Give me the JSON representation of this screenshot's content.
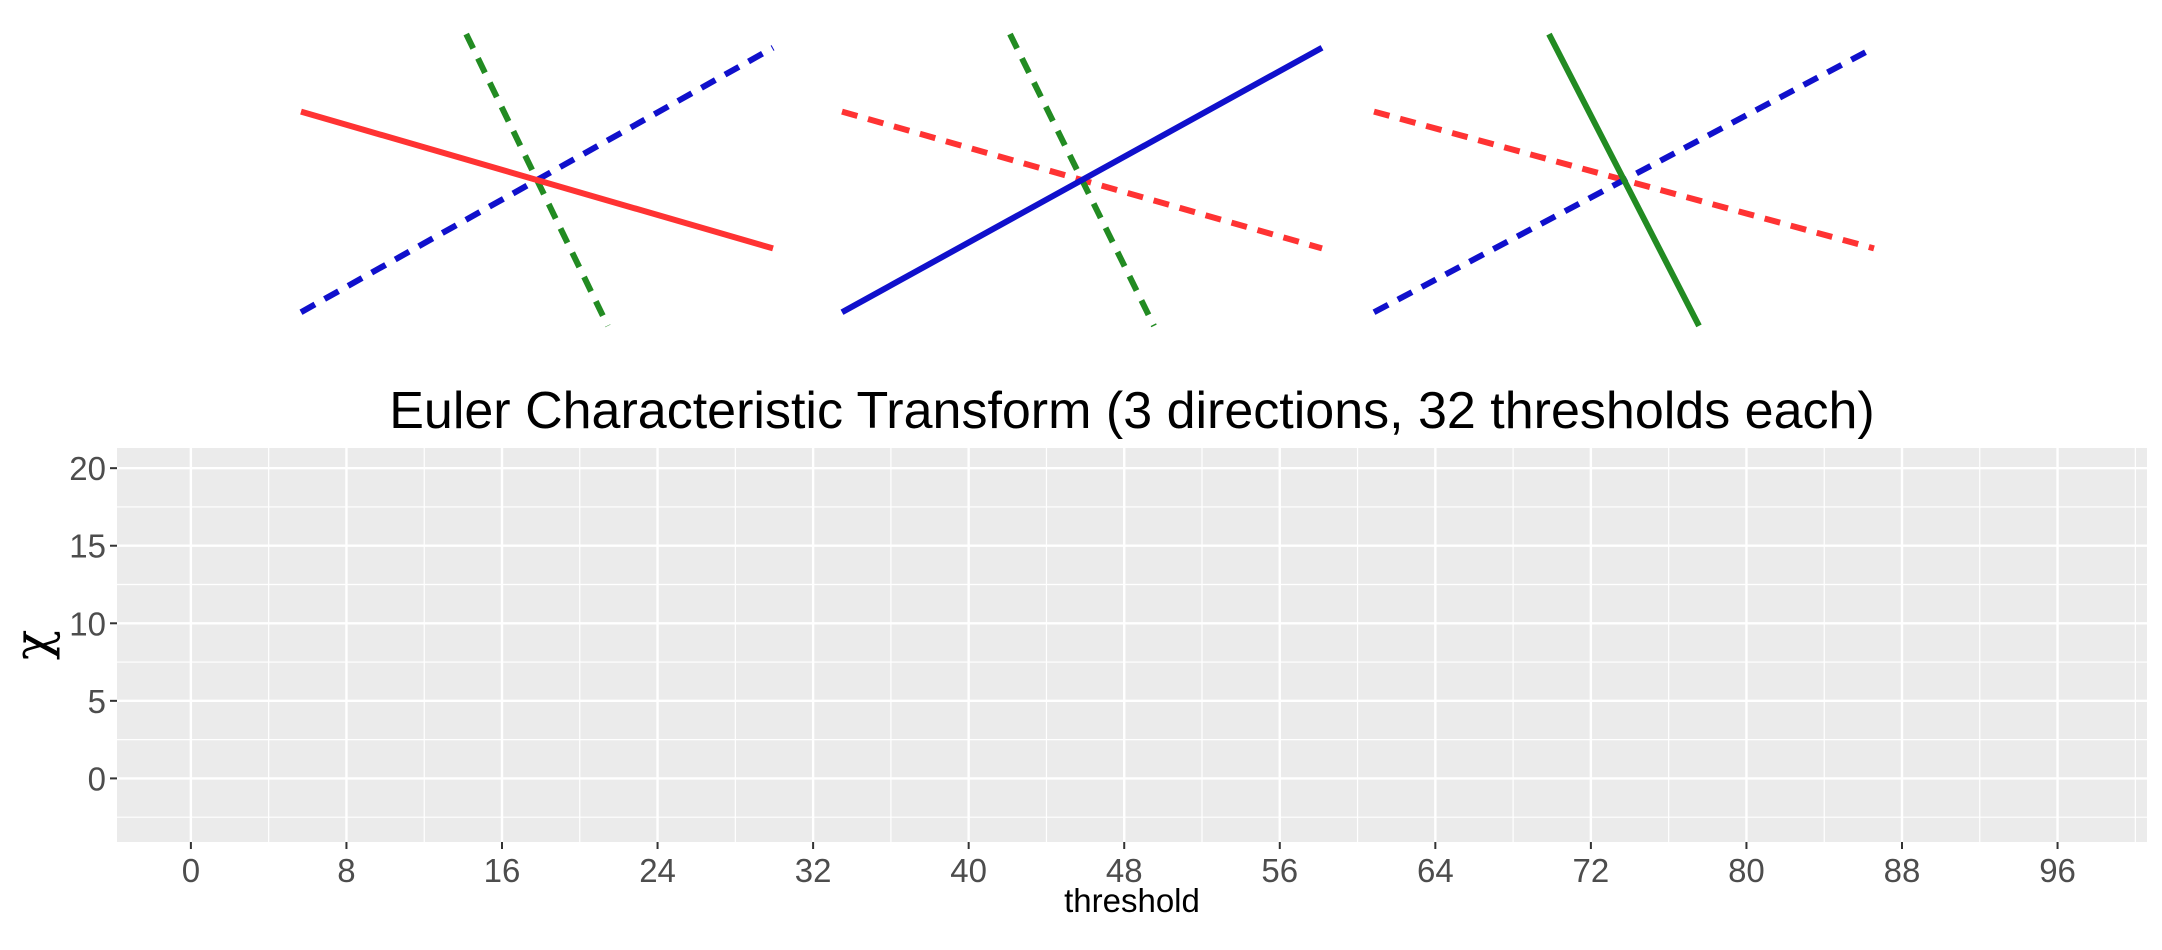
{
  "chart_data": {
    "type": "line",
    "title": "Euler Characteristic Transform (3 directions, 32 thresholds each)",
    "xlabel": "threshold",
    "ylabel": "χ",
    "x_ticks": [
      0,
      8,
      16,
      24,
      32,
      40,
      48,
      56,
      64,
      72,
      80,
      88,
      96
    ],
    "y_ticks": [
      0,
      5,
      10,
      15,
      20
    ],
    "xlim": [
      -3.8,
      100.6
    ],
    "ylim": [
      -4.1,
      21.3
    ],
    "grid": true,
    "series": [],
    "direction_panels": [
      {
        "lines": [
          {
            "color": "#ff3333",
            "style": "solid",
            "x": [
              -1.0,
              1.0
            ],
            "y": [
              0.45,
              -0.45
            ]
          },
          {
            "color": "#1010cc",
            "style": "dashed",
            "x": [
              -1.0,
              1.0
            ],
            "y": [
              -0.87,
              0.87
            ]
          },
          {
            "color": "#228b22",
            "style": "dashed",
            "x": [
              -0.3,
              0.3
            ],
            "y": [
              0.96,
              -0.96
            ]
          }
        ]
      },
      {
        "lines": [
          {
            "color": "#ff3333",
            "style": "dashed",
            "x": [
              -1.0,
              1.0
            ],
            "y": [
              0.45,
              -0.45
            ]
          },
          {
            "color": "#1010cc",
            "style": "solid",
            "x": [
              -1.0,
              1.0
            ],
            "y": [
              -0.87,
              0.87
            ]
          },
          {
            "color": "#228b22",
            "style": "dashed",
            "x": [
              -0.3,
              0.3
            ],
            "y": [
              0.96,
              -0.96
            ]
          }
        ]
      },
      {
        "lines": [
          {
            "color": "#ff3333",
            "style": "dashed",
            "x": [
              -1.0,
              1.0
            ],
            "y": [
              0.45,
              -0.45
            ]
          },
          {
            "color": "#1010cc",
            "style": "dashed",
            "x": [
              -1.0,
              1.0
            ],
            "y": [
              -0.87,
              0.87
            ]
          },
          {
            "color": "#228b22",
            "style": "solid",
            "x": [
              -0.3,
              0.3
            ],
            "y": [
              0.96,
              -0.96
            ]
          }
        ]
      }
    ]
  }
}
